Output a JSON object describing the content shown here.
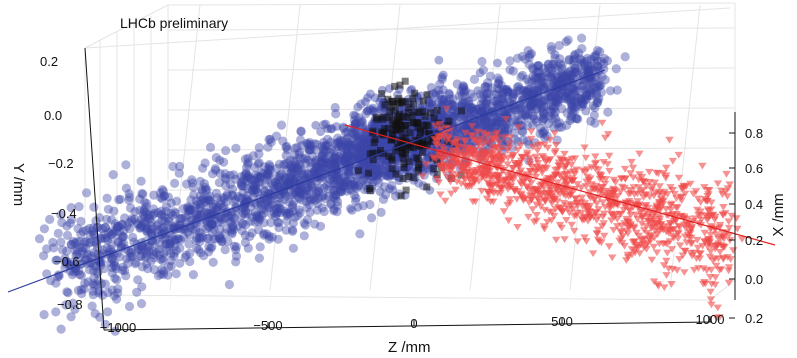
{
  "chart_data": {
    "type": "scatter",
    "title": "",
    "annotation": "LHCb preliminary",
    "axes": {
      "z": {
        "label": "Z /mm",
        "ticks": [
          "−1000",
          "−500",
          "0",
          "500",
          "1000"
        ]
      },
      "y": {
        "label": "Y /mm",
        "ticks": [
          "0.2",
          "0.0",
          "−0.2",
          "−0.4",
          "−0.6",
          "−0.8"
        ]
      },
      "x": {
        "label": "X /mm",
        "ticks": [
          "0.8",
          "0.6",
          "0.4",
          "0.2",
          "0.0",
          "0.2"
        ]
      }
    },
    "series": [
      {
        "role": "incoming beam vertices",
        "marker": "circle",
        "color": "#3b44a8",
        "fit_line_color": "#2a3aa0",
        "count": 2300
      },
      {
        "role": "beam-beam vertices",
        "marker": "square",
        "color": "#111111",
        "count": 170
      },
      {
        "role": "outgoing beam vertices",
        "marker": "triangle-down",
        "color": "#f04a4a",
        "fit_line_color": "#e02020",
        "count": 1100
      }
    ],
    "grid": true
  }
}
